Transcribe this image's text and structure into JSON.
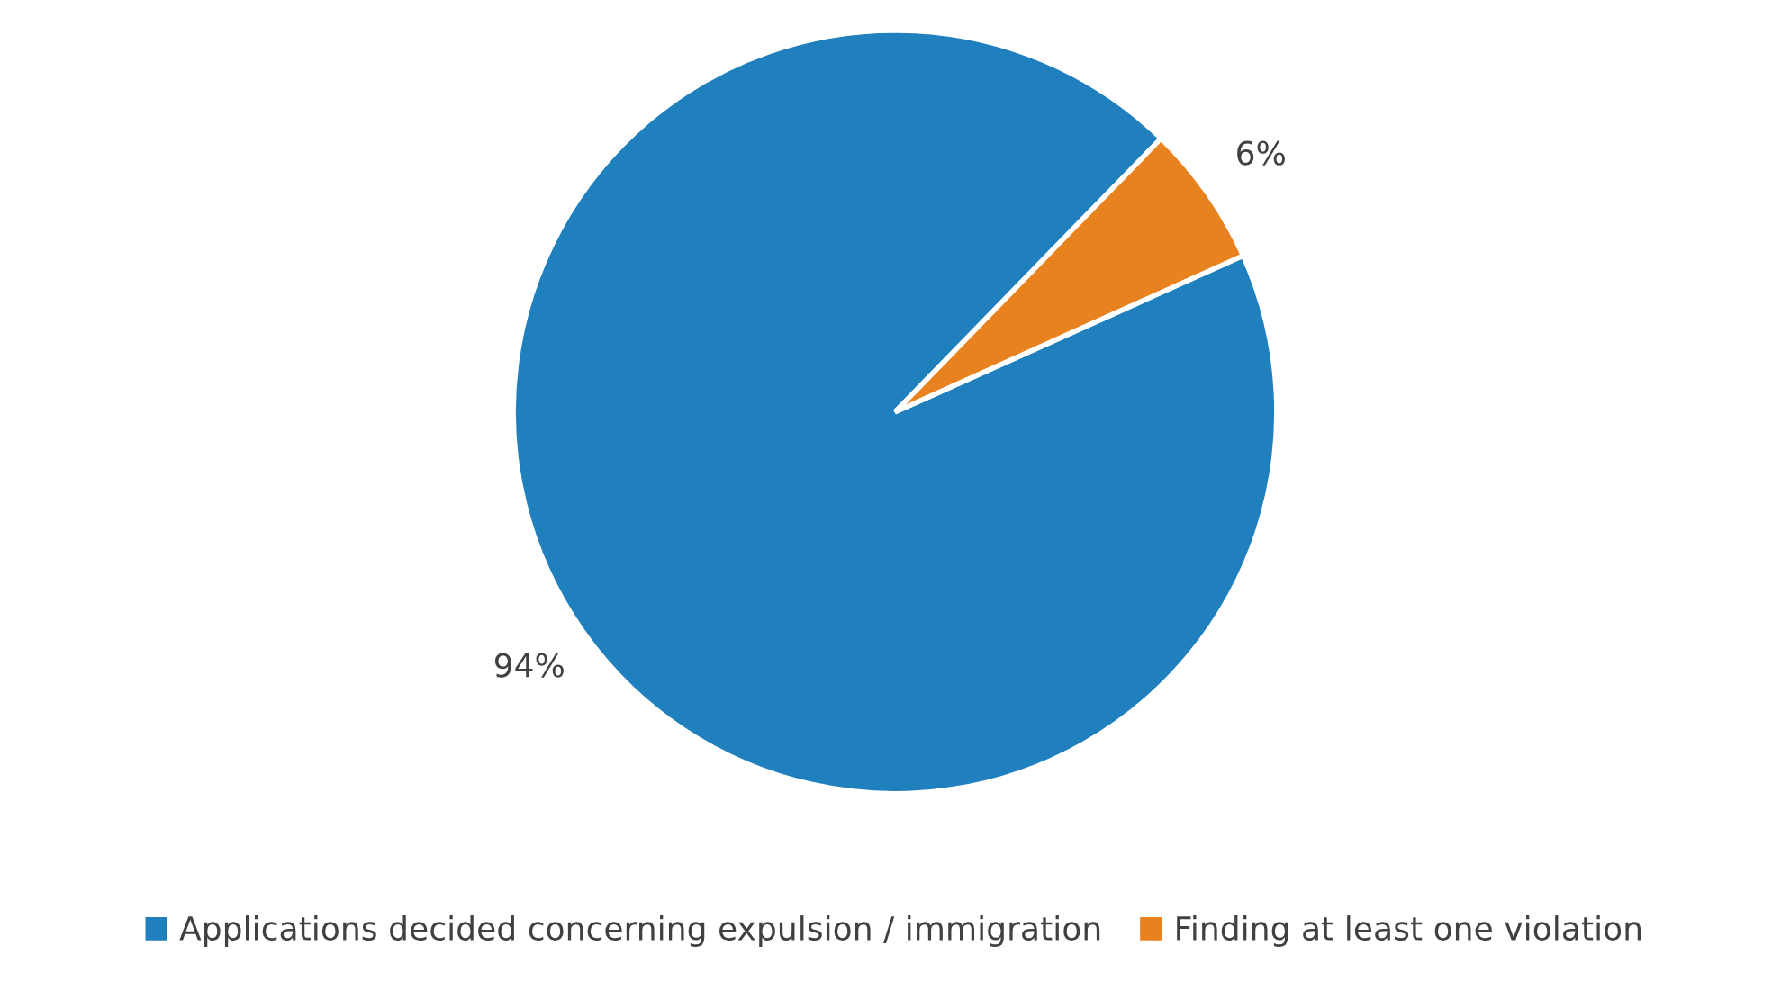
{
  "chart_data": {
    "type": "pie",
    "categories": [
      "Applications decided concerning expulsion / immigration",
      "Finding at least one violation"
    ],
    "values": [
      94,
      6
    ],
    "colors": [
      "#1f80bd",
      "#e8821e"
    ],
    "value_labels": [
      "94%",
      "6%"
    ],
    "legend": "bottom"
  }
}
